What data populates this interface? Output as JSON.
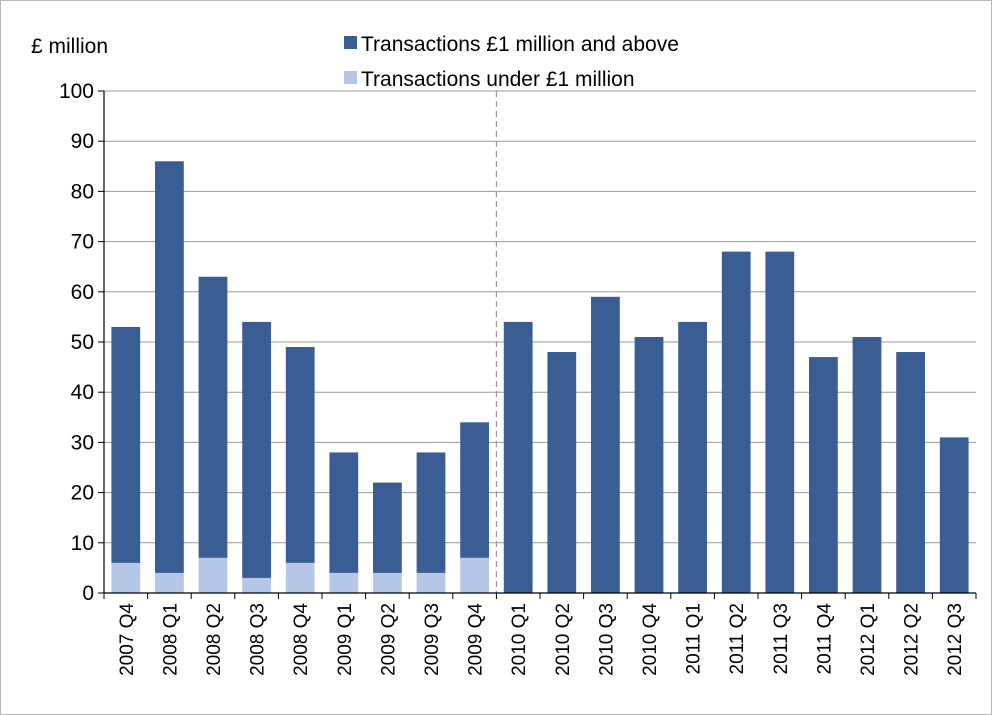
{
  "chart_data": {
    "type": "bar",
    "stacked": true,
    "title": "",
    "xlabel": "",
    "ylabel": "£ million",
    "ylim": [
      0,
      100
    ],
    "yticks": [
      0,
      10,
      20,
      30,
      40,
      50,
      60,
      70,
      80,
      90,
      100
    ],
    "grid": true,
    "legend_position": "top",
    "categories": [
      "2007 Q4",
      "2008 Q1",
      "2008 Q2",
      "2008 Q3",
      "2008 Q4",
      "2009 Q1",
      "2009 Q2",
      "2009 Q3",
      "2009 Q4",
      "2010 Q1",
      "2010 Q2",
      "2010 Q3",
      "2010 Q4",
      "2011 Q1",
      "2011 Q2",
      "2011 Q3",
      "2011 Q4",
      "2012 Q1",
      "2012 Q2",
      "2012 Q3"
    ],
    "series": [
      {
        "name": "Transactions under £1 million",
        "color": "#b4c7e7",
        "values": [
          6,
          4,
          7,
          3,
          6,
          4,
          4,
          4,
          7,
          null,
          null,
          null,
          null,
          null,
          null,
          null,
          null,
          null,
          null,
          null
        ]
      },
      {
        "name": "Transactions £1 million and above",
        "color": "#3a5e93",
        "values": [
          47,
          82,
          56,
          51,
          43,
          24,
          18,
          24,
          27,
          54,
          48,
          59,
          51,
          54,
          68,
          68,
          47,
          51,
          48,
          31
        ]
      }
    ],
    "annotations": [
      {
        "type": "vertical-dashed-line",
        "between": [
          "2009 Q4",
          "2010 Q1"
        ]
      }
    ]
  }
}
